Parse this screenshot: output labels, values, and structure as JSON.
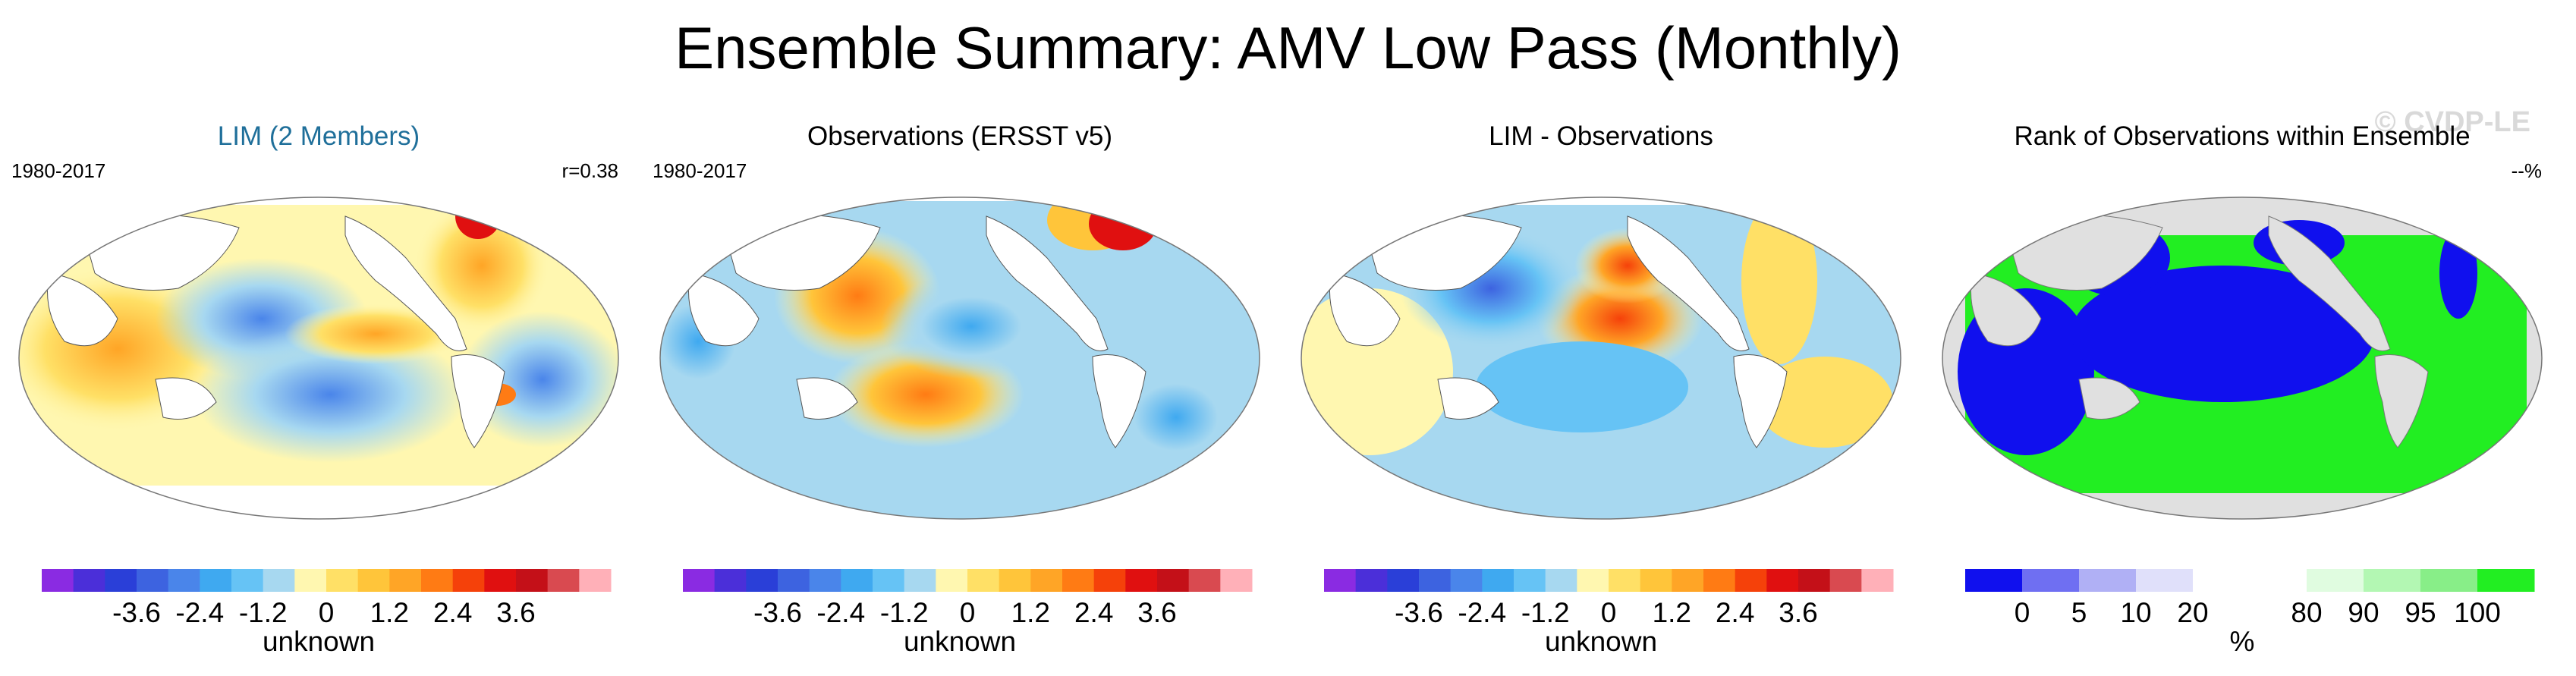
{
  "title": "Ensemble Summary: AMV Low Pass (Monthly)",
  "watermark": "© CVDP-LE",
  "panels": [
    {
      "title": "LIM (2 Members)",
      "left_label": "1980-2017",
      "right_label": "r=0.38",
      "colorbar_label": "unknown"
    },
    {
      "title": "Observations (ERSST v5)",
      "left_label": "1980-2017",
      "right_label": "",
      "colorbar_label": "unknown"
    },
    {
      "title": "LIM - Observations",
      "left_label": "",
      "right_label": "",
      "colorbar_label": "unknown"
    },
    {
      "title": "Rank of Observations within Ensemble",
      "left_label": "",
      "right_label": "--%",
      "colorbar_label": "%"
    }
  ],
  "diverging_scale": {
    "colors": [
      "#8a2be2",
      "#4b2fd9",
      "#2a3fd8",
      "#3d63e0",
      "#4a85ea",
      "#3fa9f0",
      "#66c3f5",
      "#a7d8f0",
      "#fff7b0",
      "#ffe066",
      "#ffc53a",
      "#ffa526",
      "#ff7b14",
      "#f5410a",
      "#e01010",
      "#c41018",
      "#d94a50",
      "#ffb0b8"
    ],
    "ticks": [
      "-3.6",
      "-2.4",
      "-1.2",
      "0",
      "1.2",
      "2.4",
      "3.6"
    ]
  },
  "rank_scale": {
    "colors": [
      "#1010ee",
      "#6f6ff2",
      "#b0b0f5",
      "#e0e0fa",
      "#ffffff",
      "#ffffff",
      "#e0fce0",
      "#b3f7b3",
      "#88ee88",
      "#22ee22"
    ],
    "ticks": [
      "0",
      "5",
      "10",
      "20",
      "80",
      "90",
      "95",
      "100"
    ]
  },
  "chart_data": [
    {
      "type": "heatmap",
      "title": "LIM (2 Members)",
      "period": "1980-2017",
      "pattern_correlation": 0.38,
      "variable": "AMV Low Pass (Monthly)",
      "units": "unknown",
      "contour_levels": [
        -4,
        -3.6,
        -3.2,
        -2.8,
        -2.4,
        -2,
        -1.6,
        -1.2,
        -0.8,
        -0.4,
        0,
        0.4,
        0.8,
        1.2,
        1.6,
        2,
        2.4,
        2.8,
        3.2,
        3.6,
        4
      ]
    },
    {
      "type": "heatmap",
      "title": "Observations (ERSST v5)",
      "period": "1980-2017",
      "units": "unknown"
    },
    {
      "type": "heatmap",
      "title": "LIM - Observations",
      "units": "unknown"
    },
    {
      "type": "heatmap",
      "title": "Rank of Observations within Ensemble",
      "units": "%",
      "rank_levels": [
        0,
        5,
        10,
        20,
        80,
        90,
        95,
        100
      ]
    }
  ]
}
